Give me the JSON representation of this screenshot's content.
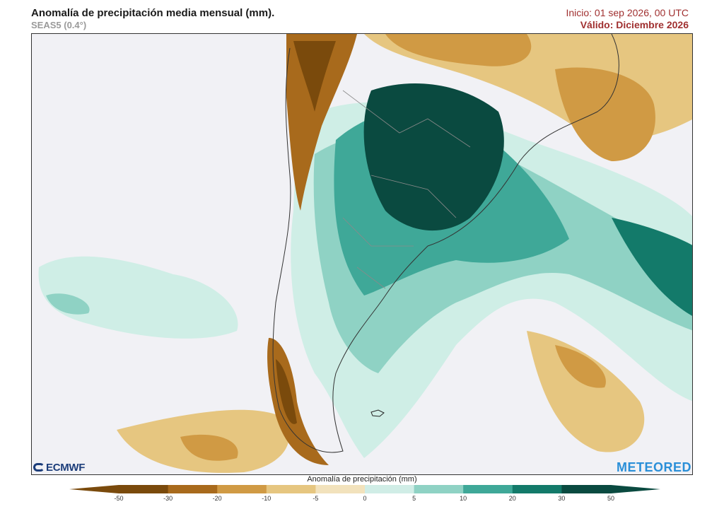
{
  "header": {
    "title": "Anomalía de precipitación media mensual (mm).",
    "subtitle": "SEAS5 (0.4°)",
    "init": "Inicio: 01 sep 2026, 00 UTC",
    "valid": "Válido: Diciembre 2026"
  },
  "logos": {
    "left": "ECMWF",
    "right": "METEORED"
  },
  "colorbar": {
    "label": "Anomalía de precipitación (mm)",
    "ticks": [
      "-50",
      "-30",
      "-20",
      "-10",
      "-5",
      "0",
      "5",
      "10",
      "20",
      "30",
      "50"
    ],
    "colors": [
      "#7a4a0c",
      "#a86a1c",
      "#d09a44",
      "#e6c680",
      "#f2e2bc",
      "#f1f1f5",
      "#d0ede6",
      "#8fd2c4",
      "#3fa898",
      "#137a6a",
      "#0a4a40"
    ]
  }
}
